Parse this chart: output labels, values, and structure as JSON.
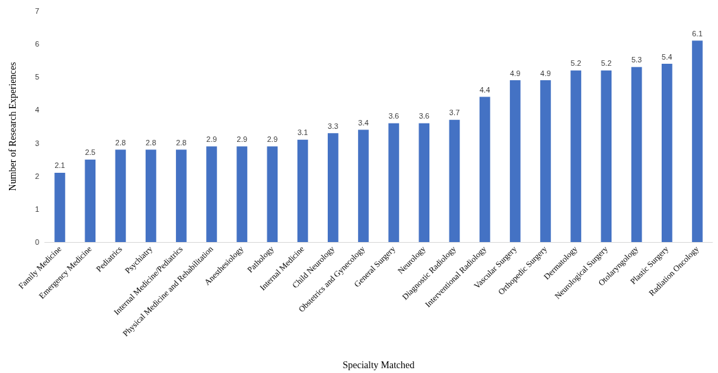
{
  "chart_data": {
    "type": "bar",
    "xlabel": "Specialty Matched",
    "ylabel": "Number of Research Experiences",
    "categories": [
      "Family Medicine",
      "Emergency Medicine",
      "Pediatrics",
      "Psychiatry",
      "Internal Medicine/Pediatrics",
      "Physical Medicine and Rehabilitation",
      "Anesthesiology",
      "Pathology",
      "Internal Medicine",
      "Child Neurology",
      "Obstetrics and Gynecology",
      "General Surgery",
      "Neurology",
      "Diagnostic Radiology",
      "Interventional Radiology",
      "Vascular Surgery",
      "Orthopedic Surgery",
      "Dermatology",
      "Neurological Surgery",
      "Otolaryngology",
      "Plastic Surgery",
      "Radiation Oncology"
    ],
    "values": [
      2.1,
      2.5,
      2.8,
      2.8,
      2.8,
      2.9,
      2.9,
      2.9,
      3.1,
      3.3,
      3.4,
      3.6,
      3.6,
      3.7,
      4.4,
      4.9,
      4.9,
      5.2,
      5.2,
      5.3,
      5.4,
      6.1
    ],
    "color": "#4472c4",
    "ylim": [
      0,
      7
    ],
    "yticks": [
      0,
      1,
      2,
      3,
      4,
      5,
      6,
      7
    ],
    "data_labels": true
  }
}
